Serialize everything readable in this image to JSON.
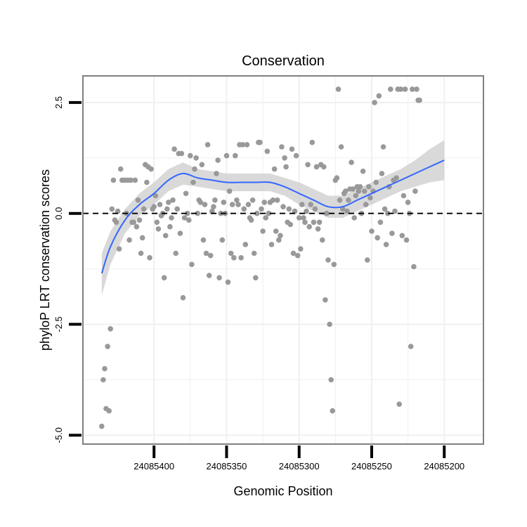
{
  "chart_data": {
    "type": "scatter",
    "title": "Conservation",
    "xlabel": "Genomic Position",
    "ylabel": "phyloP LRT conservation scores",
    "x_reversed": true,
    "xlim": [
      24085449,
      24085173
    ],
    "ylim": [
      -5.2,
      3.1
    ],
    "x_ticks": [
      24085400,
      24085350,
      24085300,
      24085250,
      24085200
    ],
    "x_tick_labels": [
      "24085400",
      "24085350",
      "24085300",
      "24085250",
      "24085200"
    ],
    "y_ticks": [
      -5.0,
      -2.5,
      0.0,
      2.5
    ],
    "y_tick_labels": [
      "-5.0",
      "-2.5",
      "0.0",
      "2.5"
    ],
    "reference_line": 0,
    "colors": {
      "points": "#999999",
      "smooth": "#3366ff",
      "band": "#cccccc",
      "grid": "#f0f0f0",
      "border": "#808080"
    },
    "points": [
      [
        24085436,
        -4.8
      ],
      [
        24085435,
        -3.75
      ],
      [
        24085434,
        -3.5
      ],
      [
        24085433,
        -4.4
      ],
      [
        24085432,
        -3.0
      ],
      [
        24085431,
        -4.45
      ],
      [
        24085430,
        -2.6
      ],
      [
        24085429,
        0.1
      ],
      [
        24085428,
        0.75
      ],
      [
        24085427,
        -0.15
      ],
      [
        24085426,
        -0.2
      ],
      [
        24085425,
        0.05
      ],
      [
        24085424,
        -0.8
      ],
      [
        24085423,
        1.0
      ],
      [
        24085422,
        0.75
      ],
      [
        24085420,
        0.75
      ],
      [
        24085419,
        0.0
      ],
      [
        24085418,
        0.75
      ],
      [
        24085417,
        -0.6
      ],
      [
        24085416,
        0.75
      ],
      [
        24085415,
        -0.2
      ],
      [
        24085414,
        -0.2
      ],
      [
        24085413,
        0.75
      ],
      [
        24085412,
        -0.3
      ],
      [
        24085411,
        0.3
      ],
      [
        24085410,
        -0.15
      ],
      [
        24085409,
        -0.9
      ],
      [
        24085408,
        -0.55
      ],
      [
        24085407,
        0.1
      ],
      [
        24085406,
        1.1
      ],
      [
        24085405,
        0.7
      ],
      [
        24085404,
        1.05
      ],
      [
        24085403,
        -1.0
      ],
      [
        24085402,
        1.0
      ],
      [
        24085401,
        0.1
      ],
      [
        24085400,
        0.15
      ],
      [
        24085399,
        0.4
      ],
      [
        24085398,
        -0.2
      ],
      [
        24085397,
        -0.35
      ],
      [
        24085396,
        0.2
      ],
      [
        24085395,
        -0.05
      ],
      [
        24085394,
        0.0
      ],
      [
        24085393,
        -1.45
      ],
      [
        24085392,
        -0.5
      ],
      [
        24085391,
        0.1
      ],
      [
        24085390,
        0.25
      ],
      [
        24085389,
        -0.3
      ],
      [
        24085388,
        -0.1
      ],
      [
        24085387,
        0.3
      ],
      [
        24085386,
        1.45
      ],
      [
        24085385,
        -0.9
      ],
      [
        24085384,
        0.1
      ],
      [
        24085383,
        1.35
      ],
      [
        24085382,
        -0.45
      ],
      [
        24085381,
        1.35
      ],
      [
        24085380,
        -1.9
      ],
      [
        24085379,
        -0.1
      ],
      [
        24085378,
        0.45
      ],
      [
        24085377,
        0.0
      ],
      [
        24085376,
        -0.15
      ],
      [
        24085375,
        1.3
      ],
      [
        24085374,
        -1.15
      ],
      [
        24085373,
        0.7
      ],
      [
        24085372,
        1.0
      ],
      [
        24085371,
        1.25
      ],
      [
        24085370,
        0.0
      ],
      [
        24085369,
        0.3
      ],
      [
        24085368,
        0.25
      ],
      [
        24085367,
        1.1
      ],
      [
        24085366,
        -0.6
      ],
      [
        24085365,
        0.2
      ],
      [
        24085364,
        -0.9
      ],
      [
        24085363,
        1.55
      ],
      [
        24085362,
        -1.4
      ],
      [
        24085361,
        -0.95
      ],
      [
        24085360,
        0.05
      ],
      [
        24085359,
        0.15
      ],
      [
        24085358,
        0.3
      ],
      [
        24085357,
        0.9
      ],
      [
        24085356,
        1.2
      ],
      [
        24085355,
        -1.45
      ],
      [
        24085354,
        0.0
      ],
      [
        24085353,
        -0.6
      ],
      [
        24085352,
        0.25
      ],
      [
        24085351,
        0.0
      ],
      [
        24085350,
        1.3
      ],
      [
        24085349,
        -1.55
      ],
      [
        24085348,
        0.5
      ],
      [
        24085347,
        -0.9
      ],
      [
        24085346,
        0.2
      ],
      [
        24085345,
        -1.0
      ],
      [
        24085344,
        1.3
      ],
      [
        24085343,
        0.3
      ],
      [
        24085342,
        0.2
      ],
      [
        24085341,
        1.55
      ],
      [
        24085340,
        -1.0
      ],
      [
        24085339,
        1.55
      ],
      [
        24085338,
        0.1
      ],
      [
        24085337,
        -0.7
      ],
      [
        24085336,
        1.55
      ],
      [
        24085335,
        0.2
      ],
      [
        24085334,
        -0.1
      ],
      [
        24085333,
        -0.15
      ],
      [
        24085332,
        0.3
      ],
      [
        24085331,
        -0.9
      ],
      [
        24085330,
        -1.45
      ],
      [
        24085329,
        0.0
      ],
      [
        24085328,
        1.6
      ],
      [
        24085327,
        1.6
      ],
      [
        24085326,
        0.1
      ],
      [
        24085325,
        -0.4
      ],
      [
        24085324,
        0.25
      ],
      [
        24085323,
        -0.1
      ],
      [
        24085322,
        1.4
      ],
      [
        24085321,
        0.0
      ],
      [
        24085320,
        0.25
      ],
      [
        24085319,
        -0.7
      ],
      [
        24085318,
        0.3
      ],
      [
        24085317,
        1.0
      ],
      [
        24085316,
        -0.4
      ],
      [
        24085315,
        0.3
      ],
      [
        24085314,
        -0.6
      ],
      [
        24085313,
        -0.5
      ],
      [
        24085312,
        1.5
      ],
      [
        24085311,
        0.15
      ],
      [
        24085310,
        1.25
      ],
      [
        24085309,
        1.05
      ],
      [
        24085308,
        -0.2
      ],
      [
        24085307,
        0.1
      ],
      [
        24085306,
        -0.25
      ],
      [
        24085305,
        1.45
      ],
      [
        24085304,
        -0.9
      ],
      [
        24085303,
        0.05
      ],
      [
        24085302,
        1.3
      ],
      [
        24085301,
        -0.95
      ],
      [
        24085300,
        -0.1
      ],
      [
        24085299,
        -0.8
      ],
      [
        24085298,
        0.2
      ],
      [
        24085297,
        -0.1
      ],
      [
        24085296,
        -0.2
      ],
      [
        24085295,
        0.05
      ],
      [
        24085294,
        1.1
      ],
      [
        24085293,
        -0.3
      ],
      [
        24085292,
        0.2
      ],
      [
        24085291,
        1.6
      ],
      [
        24085290,
        -0.2
      ],
      [
        24085289,
        0.1
      ],
      [
        24085288,
        1.05
      ],
      [
        24085287,
        -0.35
      ],
      [
        24085286,
        -0.2
      ],
      [
        24085285,
        1.1
      ],
      [
        24085284,
        -0.6
      ],
      [
        24085283,
        1.05
      ],
      [
        24085282,
        -1.95
      ],
      [
        24085281,
        0.0
      ],
      [
        24085280,
        -1.05
      ],
      [
        24085279,
        -2.5
      ],
      [
        24085278,
        -3.75
      ],
      [
        24085277,
        -4.45
      ],
      [
        24085276,
        -1.15
      ],
      [
        24085275,
        0.75
      ],
      [
        24085274,
        0.8
      ],
      [
        24085273,
        2.8
      ],
      [
        24085272,
        0.3
      ],
      [
        24085271,
        1.5
      ],
      [
        24085270,
        0.1
      ],
      [
        24085269,
        0.45
      ],
      [
        24085268,
        0.5
      ],
      [
        24085267,
        0.05
      ],
      [
        24085266,
        0.3
      ],
      [
        24085265,
        0.55
      ],
      [
        24085264,
        1.15
      ],
      [
        24085263,
        0.55
      ],
      [
        24085262,
        -0.1
      ],
      [
        24085261,
        0.4
      ],
      [
        24085260,
        0.6
      ],
      [
        24085259,
        0.5
      ],
      [
        24085258,
        0.6
      ],
      [
        24085257,
        0.0
      ],
      [
        24085256,
        0.95
      ],
      [
        24085255,
        0.5
      ],
      [
        24085254,
        0.2
      ],
      [
        24085253,
        -1.05
      ],
      [
        24085252,
        0.6
      ],
      [
        24085251,
        0.35
      ],
      [
        24085250,
        -0.4
      ],
      [
        24085249,
        0.5
      ],
      [
        24085248,
        2.5
      ],
      [
        24085247,
        0.7
      ],
      [
        24085246,
        -0.55
      ],
      [
        24085245,
        2.65
      ],
      [
        24085244,
        -0.2
      ],
      [
        24085243,
        0.9
      ],
      [
        24085242,
        1.5
      ],
      [
        24085241,
        0.1
      ],
      [
        24085240,
        -0.7
      ],
      [
        24085239,
        0.0
      ],
      [
        24085238,
        0.6
      ],
      [
        24085237,
        2.8
      ],
      [
        24085236,
        -0.45
      ],
      [
        24085235,
        0.75
      ],
      [
        24085234,
        0.05
      ],
      [
        24085233,
        0.8
      ],
      [
        24085232,
        2.8
      ],
      [
        24085231,
        -4.3
      ],
      [
        24085230,
        2.8
      ],
      [
        24085229,
        -0.5
      ],
      [
        24085228,
        0.4
      ],
      [
        24085227,
        2.8
      ],
      [
        24085226,
        -0.6
      ],
      [
        24085225,
        0.25
      ],
      [
        24085224,
        0.0
      ],
      [
        24085223,
        -3.0
      ],
      [
        24085222,
        2.8
      ],
      [
        24085221,
        -1.2
      ],
      [
        24085220,
        0.5
      ],
      [
        24085219,
        2.8
      ],
      [
        24085218,
        2.55
      ],
      [
        24085217,
        2.55
      ]
    ],
    "smooth_curve": [
      [
        24085436,
        -1.35
      ],
      [
        24085430,
        -0.75
      ],
      [
        24085420,
        -0.15
      ],
      [
        24085410,
        0.2
      ],
      [
        24085400,
        0.45
      ],
      [
        24085390,
        0.75
      ],
      [
        24085380,
        0.9
      ],
      [
        24085370,
        0.8
      ],
      [
        24085360,
        0.75
      ],
      [
        24085350,
        0.7
      ],
      [
        24085340,
        0.7
      ],
      [
        24085330,
        0.7
      ],
      [
        24085320,
        0.7
      ],
      [
        24085310,
        0.6
      ],
      [
        24085300,
        0.45
      ],
      [
        24085290,
        0.3
      ],
      [
        24085280,
        0.15
      ],
      [
        24085270,
        0.15
      ],
      [
        24085260,
        0.3
      ],
      [
        24085250,
        0.45
      ],
      [
        24085240,
        0.6
      ],
      [
        24085230,
        0.75
      ],
      [
        24085220,
        0.9
      ],
      [
        24085210,
        1.05
      ],
      [
        24085200,
        1.2
      ]
    ],
    "band_upper": [
      [
        24085436,
        -0.9
      ],
      [
        24085430,
        -0.4
      ],
      [
        24085420,
        0.1
      ],
      [
        24085410,
        0.45
      ],
      [
        24085400,
        0.7
      ],
      [
        24085390,
        1.0
      ],
      [
        24085380,
        1.15
      ],
      [
        24085370,
        1.0
      ],
      [
        24085360,
        0.95
      ],
      [
        24085350,
        0.9
      ],
      [
        24085340,
        0.9
      ],
      [
        24085330,
        0.9
      ],
      [
        24085320,
        0.9
      ],
      [
        24085310,
        0.8
      ],
      [
        24085300,
        0.7
      ],
      [
        24085290,
        0.55
      ],
      [
        24085280,
        0.4
      ],
      [
        24085270,
        0.4
      ],
      [
        24085260,
        0.55
      ],
      [
        24085250,
        0.7
      ],
      [
        24085240,
        0.85
      ],
      [
        24085230,
        1.0
      ],
      [
        24085220,
        1.2
      ],
      [
        24085210,
        1.45
      ],
      [
        24085200,
        1.65
      ]
    ],
    "band_lower": [
      [
        24085436,
        -1.85
      ],
      [
        24085430,
        -1.15
      ],
      [
        24085420,
        -0.45
      ],
      [
        24085410,
        -0.05
      ],
      [
        24085400,
        0.2
      ],
      [
        24085390,
        0.5
      ],
      [
        24085380,
        0.65
      ],
      [
        24085370,
        0.6
      ],
      [
        24085360,
        0.55
      ],
      [
        24085350,
        0.5
      ],
      [
        24085340,
        0.5
      ],
      [
        24085330,
        0.5
      ],
      [
        24085320,
        0.5
      ],
      [
        24085310,
        0.4
      ],
      [
        24085300,
        0.2
      ],
      [
        24085290,
        0.05
      ],
      [
        24085280,
        -0.1
      ],
      [
        24085270,
        -0.1
      ],
      [
        24085260,
        0.05
      ],
      [
        24085250,
        0.2
      ],
      [
        24085240,
        0.35
      ],
      [
        24085230,
        0.5
      ],
      [
        24085220,
        0.6
      ],
      [
        24085210,
        0.7
      ],
      [
        24085200,
        0.75
      ]
    ]
  }
}
